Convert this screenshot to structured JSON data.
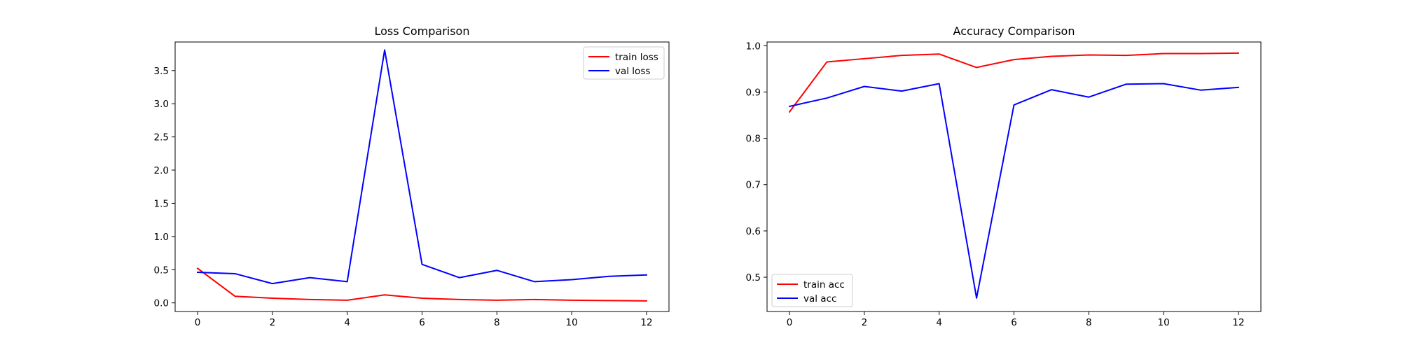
{
  "chart_data": [
    {
      "type": "line",
      "title": "Loss Comparison",
      "xlabel": "",
      "ylabel": "",
      "x": [
        0,
        1,
        2,
        3,
        4,
        5,
        6,
        7,
        8,
        9,
        10,
        11,
        12
      ],
      "xlim": [
        -0.6,
        12.6
      ],
      "ylim": [
        -0.13,
        3.93
      ],
      "xticks": [
        0,
        2,
        4,
        6,
        8,
        10,
        12
      ],
      "yticks": [
        0.0,
        0.5,
        1.0,
        1.5,
        2.0,
        2.5,
        3.0,
        3.5
      ],
      "ytick_labels": [
        "0.0",
        "0.5",
        "1.0",
        "1.5",
        "2.0",
        "2.5",
        "3.0",
        "3.5"
      ],
      "grid": false,
      "legend_loc": "upper right",
      "series": [
        {
          "name": "train loss",
          "color": "#ff0000",
          "values": [
            0.52,
            0.1,
            0.07,
            0.05,
            0.04,
            0.12,
            0.07,
            0.05,
            0.04,
            0.05,
            0.04,
            0.035,
            0.03
          ]
        },
        {
          "name": "val loss",
          "color": "#0000ff",
          "values": [
            0.46,
            0.44,
            0.29,
            0.38,
            0.32,
            3.81,
            0.58,
            0.38,
            0.49,
            0.32,
            0.35,
            0.4,
            0.42
          ]
        }
      ]
    },
    {
      "type": "line",
      "title": "Accuracy Comparison",
      "xlabel": "",
      "ylabel": "",
      "x": [
        0,
        1,
        2,
        3,
        4,
        5,
        6,
        7,
        8,
        9,
        10,
        11,
        12
      ],
      "xlim": [
        -0.6,
        12.6
      ],
      "ylim": [
        0.426,
        1.008
      ],
      "xticks": [
        0,
        2,
        4,
        6,
        8,
        10,
        12
      ],
      "yticks": [
        0.5,
        0.6,
        0.7,
        0.8,
        0.9,
        1.0
      ],
      "ytick_labels": [
        "0.5",
        "0.6",
        "0.7",
        "0.8",
        "0.9",
        "1.0"
      ],
      "grid": false,
      "legend_loc": "lower left",
      "series": [
        {
          "name": "train acc",
          "color": "#ff0000",
          "values": [
            0.857,
            0.965,
            0.972,
            0.979,
            0.982,
            0.953,
            0.97,
            0.977,
            0.98,
            0.979,
            0.983,
            0.983,
            0.984
          ]
        },
        {
          "name": "val acc",
          "color": "#0000ff",
          "values": [
            0.869,
            0.887,
            0.912,
            0.902,
            0.918,
            0.455,
            0.872,
            0.905,
            0.889,
            0.917,
            0.918,
            0.904,
            0.91
          ]
        }
      ]
    }
  ]
}
